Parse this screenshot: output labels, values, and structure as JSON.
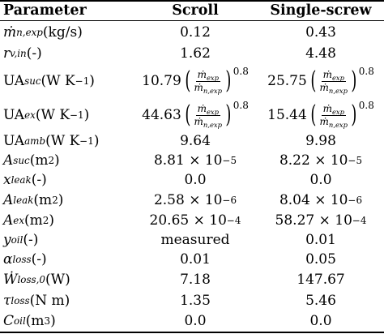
{
  "header": {
    "parameter": "Parameter",
    "scroll": "Scroll",
    "single_screw": "Single-screw"
  },
  "rows": [
    {
      "scroll": "0.12",
      "single": "0.43"
    },
    {
      "scroll": "1.62",
      "single": "4.48"
    },
    {
      "scroll_coef": "10.79",
      "single_coef": "25.75",
      "exponent": "0.8"
    },
    {
      "scroll_coef": "44.63",
      "single_coef": "15.44",
      "exponent": "0.8"
    },
    {
      "scroll": "9.64",
      "single": "9.98"
    },
    {
      "scroll": "8.81 × 10",
      "scroll_exp": "−5",
      "single": "8.22 × 10",
      "single_exp": "−5"
    },
    {
      "scroll": "0.0",
      "single": "0.0"
    },
    {
      "scroll": "2.58 × 10",
      "scroll_exp": "−6",
      "single": "8.04 × 10",
      "single_exp": "−6"
    },
    {
      "scroll": "20.65 × 10",
      "scroll_exp": "−4",
      "single": "58.27 × 10",
      "single_exp": "−4"
    },
    {
      "scroll": "measured",
      "single": "0.01"
    },
    {
      "scroll": "0.01",
      "single": "0.05"
    },
    {
      "scroll": "7.18",
      "single": "147.67"
    },
    {
      "scroll": "1.35",
      "single": "5.46"
    },
    {
      "scroll": "0.0",
      "single": "0.0"
    }
  ],
  "labels": {
    "r0_unit": " (kg/s)",
    "r1_unit": " (-)",
    "ua": "UA",
    "ua_unit": " (W K",
    "ua_exp": "−1",
    "close": ")",
    "m2": " (m",
    "sq": "2",
    "cube": "3",
    "dash": " (-)",
    "watt": " (W)",
    "nm": " (N m)"
  },
  "subs": {
    "n_exp": "n,exp",
    "v_in": "v,in",
    "suc": "suc",
    "ex": "ex",
    "amb": "amb",
    "leak": "leak",
    "oil": "oil",
    "loss": "loss",
    "loss0": "loss,0",
    "exp": "exp"
  }
}
